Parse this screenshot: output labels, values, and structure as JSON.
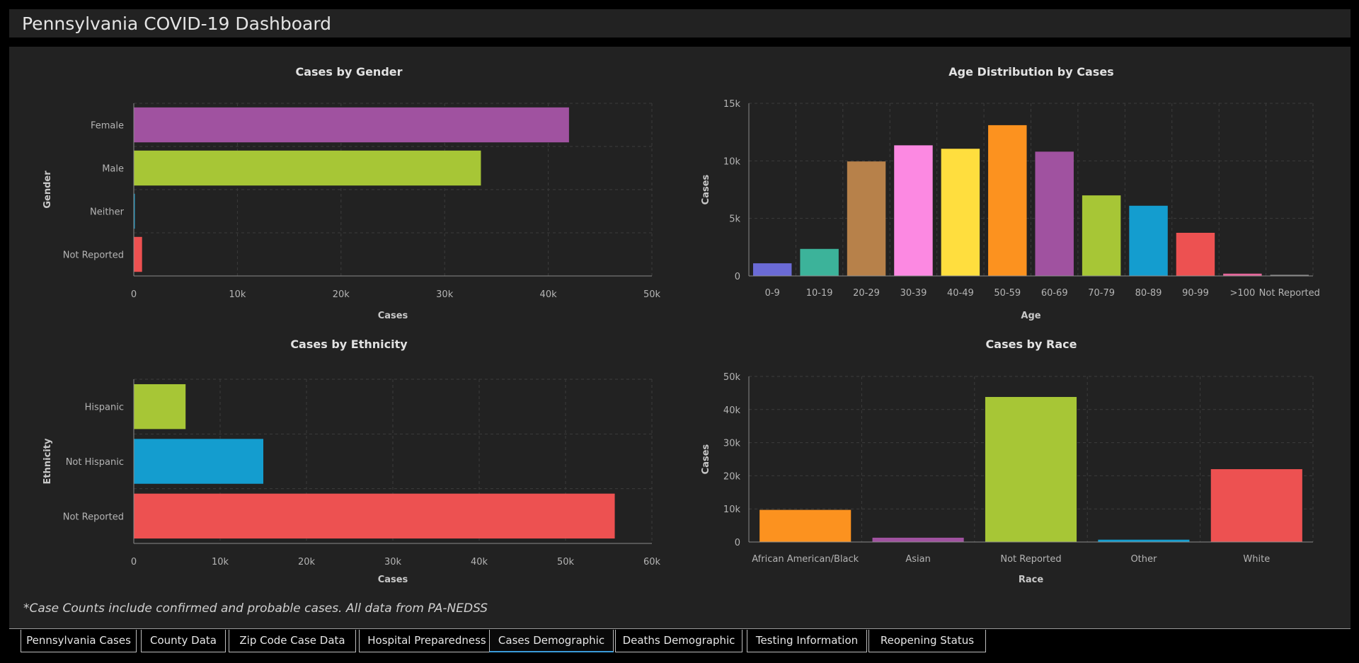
{
  "app": {
    "title": "Pennsylvania COVID-19 Dashboard"
  },
  "footnote": "*Case Counts include confirmed and probable cases. All data from PA-NEDSS",
  "tabs": [
    {
      "label": "Pennsylvania Cases",
      "active": false
    },
    {
      "label": "County Data",
      "active": false
    },
    {
      "label": "Zip Code Case Data",
      "active": false
    },
    {
      "label": "Hospital Preparedness",
      "active": false
    },
    {
      "label": "Cases Demographic",
      "active": true
    },
    {
      "label": "Deaths Demographic",
      "active": false
    },
    {
      "label": "Testing Information",
      "active": false
    },
    {
      "label": "Reopening Status",
      "active": false
    }
  ],
  "chart_data": [
    {
      "id": "gender",
      "type": "bar",
      "orientation": "horizontal",
      "title": "Cases by Gender",
      "xlabel": "Cases",
      "ylabel": "Gender",
      "categories": [
        "Female",
        "Male",
        "Neither",
        "Not Reported"
      ],
      "values": [
        42000,
        33500,
        80,
        800
      ],
      "colors": [
        "#a052a0",
        "#a7c636",
        "#149dcf",
        "#ed5151"
      ],
      "xlim": [
        0,
        50000
      ],
      "ticks": [
        "0",
        "10k",
        "20k",
        "30k",
        "40k",
        "50k"
      ],
      "grid": true
    },
    {
      "id": "age",
      "type": "bar",
      "orientation": "vertical",
      "title": "Age Distribution by Cases",
      "xlabel": "Age",
      "ylabel": "Cases",
      "categories": [
        "0-9",
        "10-19",
        "20-29",
        "30-39",
        "40-49",
        "50-59",
        "60-69",
        "70-79",
        "80-89",
        "90-99",
        ">100",
        "Not Reported"
      ],
      "values": [
        1100,
        2350,
        9950,
        11350,
        11050,
        13100,
        10800,
        7000,
        6100,
        3750,
        200,
        100
      ],
      "colors": [
        "#6b6bd6",
        "#3cb39a",
        "#b7814a",
        "#fc89e2",
        "#ffde3e",
        "#fc921f",
        "#a052a0",
        "#a7c636",
        "#149dcf",
        "#ed5151",
        "#e5669a",
        "#8a8a8a"
      ],
      "ylim": [
        0,
        15000
      ],
      "ticks": [
        "0",
        "5k",
        "10k",
        "15k"
      ],
      "grid": true
    },
    {
      "id": "ethnicity",
      "type": "bar",
      "orientation": "horizontal",
      "title": "Cases by Ethnicity",
      "xlabel": "Cases",
      "ylabel": "Ethnicity",
      "categories": [
        "Hispanic",
        "Not Hispanic",
        "Not Reported"
      ],
      "values": [
        6000,
        15000,
        55700
      ],
      "colors": [
        "#a7c636",
        "#149dcf",
        "#ed5151"
      ],
      "xlim": [
        0,
        60000
      ],
      "ticks": [
        "0",
        "10k",
        "20k",
        "30k",
        "40k",
        "50k",
        "60k"
      ],
      "grid": true
    },
    {
      "id": "race",
      "type": "bar",
      "orientation": "vertical",
      "title": "Cases by Race",
      "xlabel": "Race",
      "ylabel": "Cases",
      "categories": [
        "African American/Black",
        "Asian",
        "Not Reported",
        "Other",
        "White"
      ],
      "values": [
        9700,
        1300,
        43800,
        700,
        22000
      ],
      "colors": [
        "#fc921f",
        "#a052a0",
        "#a7c636",
        "#149dcf",
        "#ed5151"
      ],
      "ylim": [
        0,
        50000
      ],
      "ticks": [
        "0",
        "10k",
        "20k",
        "30k",
        "40k",
        "50k"
      ],
      "grid": true
    }
  ]
}
